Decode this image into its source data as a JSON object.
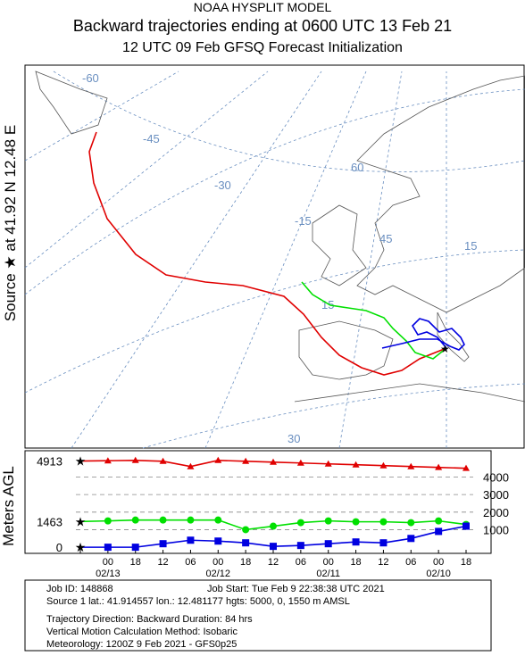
{
  "header": {
    "line1": "NOAA HYSPLIT MODEL",
    "line2": "Backward trajectories ending at 0600 UTC 13 Feb 21",
    "line3": "12 UTC 09 Feb    GFSQ  Forecast Initialization"
  },
  "side_label": "Source ★ at   41.92 N   12.48 E",
  "map": {
    "grid_labels": [
      "-60",
      "-45",
      "-30",
      "-15",
      "60",
      "45",
      "15",
      "15",
      "30"
    ]
  },
  "height_chart": {
    "type": "line",
    "y_axis_label": "Meters AGL",
    "categories": [
      null,
      "00",
      "18",
      "12",
      "06",
      "00",
      "18",
      "12",
      "06",
      "00",
      "18",
      "12",
      "06",
      "00",
      "18"
    ],
    "dates": [
      {
        "index": 1,
        "label": "02/13"
      },
      {
        "index": 5,
        "label": "02/12"
      },
      {
        "index": 9,
        "label": "02/11"
      },
      {
        "index": 13,
        "label": "02/10"
      }
    ],
    "ylim": [
      -350,
      5500
    ],
    "yticks": [
      1000,
      2000,
      3000,
      4000
    ],
    "series": [
      {
        "color": "#e00000",
        "marker": "triangle",
        "values": [
          4913,
          4930,
          4950,
          4900,
          4600,
          4950,
          4900,
          4850,
          4800,
          4750,
          4700,
          4650,
          4600,
          4550,
          4500
        ]
      },
      {
        "color": "#00e000",
        "marker": "circle",
        "values": [
          1463,
          1500,
          1550,
          1550,
          1550,
          1550,
          1000,
          1200,
          1400,
          1500,
          1450,
          1450,
          1400,
          1500,
          1300
        ]
      },
      {
        "color": "#0000e0",
        "marker": "square",
        "values": [
          0,
          0,
          0,
          200,
          400,
          350,
          250,
          50,
          100,
          200,
          300,
          250,
          500,
          900,
          1200
        ]
      }
    ]
  },
  "footer": {
    "job_id": "Job ID: 148868",
    "job_start": "Job Start: Tue Feb  9 22:38:38 UTC 2021",
    "source": "Source 1 lat.: 41.914557  lon.: 12.481177  hgts: 5000, 0, 1550 m AMSL",
    "direction": "Trajectory Direction: Backward       Duration: 84 hrs",
    "method": "Vertical Motion Calculation Method:       Isobaric",
    "meteorology": "Meteorology: 1200Z  9 Feb 2021 - GFS0p25"
  }
}
